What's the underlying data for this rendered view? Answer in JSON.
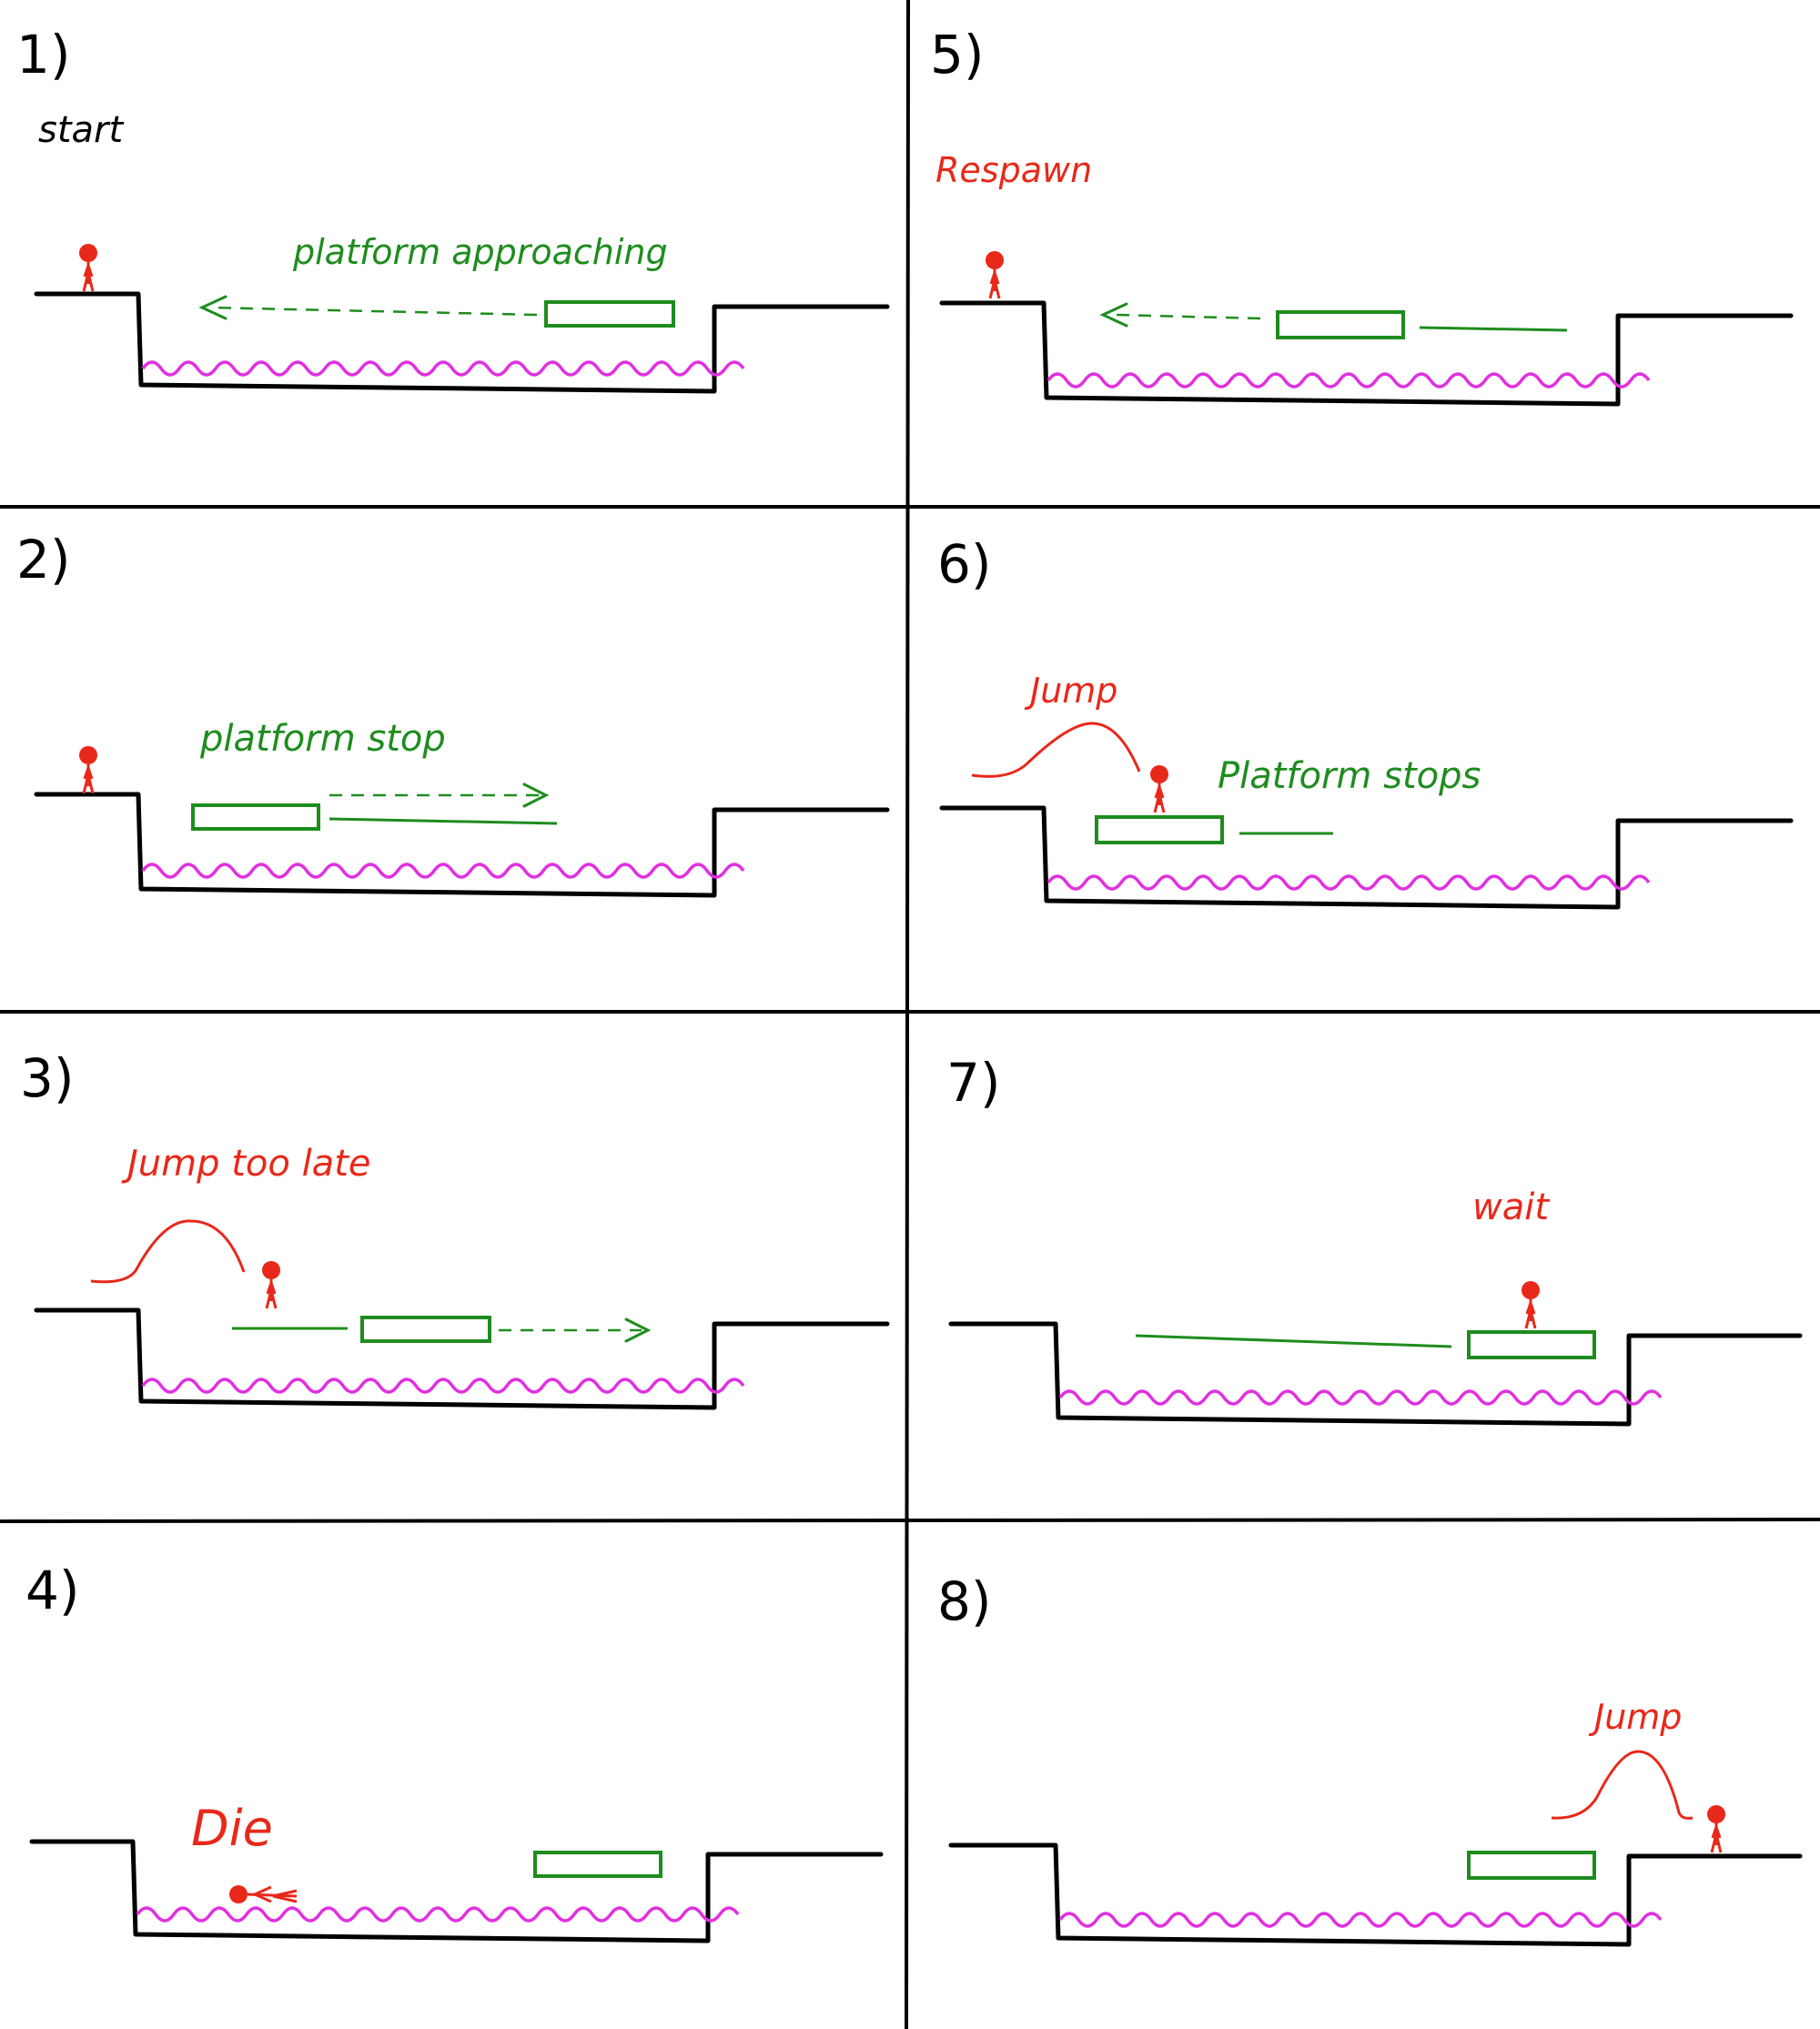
{
  "panels": [
    {
      "number": "1)",
      "caption": "start",
      "note": "platform approaching"
    },
    {
      "number": "2)",
      "note": "platform stop"
    },
    {
      "number": "3)",
      "caption": "Jump too late"
    },
    {
      "number": "4)",
      "caption": "Die"
    },
    {
      "number": "5)",
      "caption": "Respawn"
    },
    {
      "number": "6)",
      "caption": "Jump",
      "note": "Platform stops"
    },
    {
      "number": "7)",
      "caption": "wait"
    },
    {
      "number": "8)",
      "caption": "Jump"
    }
  ],
  "colors": {
    "ground": "#000000",
    "hazard": "#e030e0",
    "platform": "#1e8c1e",
    "player": "#e8281a",
    "text_black": "#000000",
    "text_red": "#e8281a",
    "text_green": "#1e8c1e"
  }
}
